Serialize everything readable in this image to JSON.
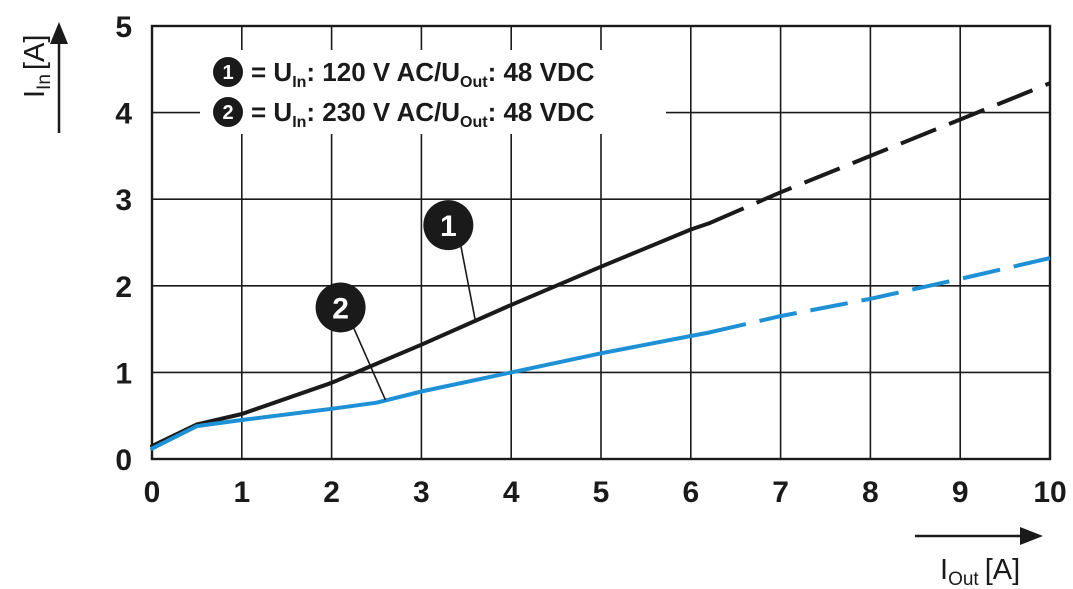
{
  "chart_data": {
    "type": "line",
    "xlim": [
      0,
      10
    ],
    "ylim": [
      0,
      5
    ],
    "x_ticks": [
      "0",
      "1",
      "2",
      "3",
      "4",
      "5",
      "6",
      "7",
      "8",
      "9",
      "10"
    ],
    "y_ticks": [
      "0",
      "1",
      "2",
      "3",
      "4",
      "5"
    ],
    "grid": true,
    "xlabel": {
      "main": "I",
      "sub": "Out",
      "unit": "[A]"
    },
    "ylabel": {
      "main": "I",
      "sub": "In",
      "unit": "[A]"
    },
    "legend": [
      {
        "marker": "1",
        "prefix": "= U",
        "sub1": "In",
        "mid": ": 120 V AC/U",
        "sub2": "Out",
        "suffix": ": 48 VDC"
      },
      {
        "marker": "2",
        "prefix": "= U",
        "sub1": "In",
        "mid": ": 230 V AC/U",
        "sub2": "Out",
        "suffix": ": 48 VDC"
      }
    ],
    "series": [
      {
        "marker": "1",
        "color": "#1a1a1a",
        "solid": [
          [
            0,
            0.15
          ],
          [
            0.5,
            0.4
          ],
          [
            1,
            0.52
          ],
          [
            2,
            0.88
          ],
          [
            3,
            1.32
          ],
          [
            4,
            1.78
          ],
          [
            5,
            2.22
          ],
          [
            6,
            2.65
          ],
          [
            6.2,
            2.72
          ]
        ],
        "dashed": [
          [
            6.2,
            2.72
          ],
          [
            7,
            3.08
          ],
          [
            8,
            3.5
          ],
          [
            9,
            3.92
          ],
          [
            10,
            4.34
          ]
        ],
        "label_at": [
          3.3,
          2.7
        ],
        "leader_to": [
          3.6,
          1.6
        ]
      },
      {
        "marker": "2",
        "color": "#1e90d6",
        "solid": [
          [
            0,
            0.12
          ],
          [
            0.5,
            0.38
          ],
          [
            1,
            0.45
          ],
          [
            2,
            0.58
          ],
          [
            2.5,
            0.65
          ],
          [
            3,
            0.78
          ],
          [
            4,
            1.0
          ],
          [
            5,
            1.22
          ],
          [
            6,
            1.42
          ],
          [
            6.2,
            1.46
          ]
        ],
        "dashed": [
          [
            6.2,
            1.46
          ],
          [
            7,
            1.65
          ],
          [
            8,
            1.85
          ],
          [
            9,
            2.08
          ],
          [
            10,
            2.32
          ]
        ],
        "label_at": [
          2.1,
          1.75
        ],
        "leader_to": [
          2.6,
          0.68
        ]
      }
    ]
  }
}
